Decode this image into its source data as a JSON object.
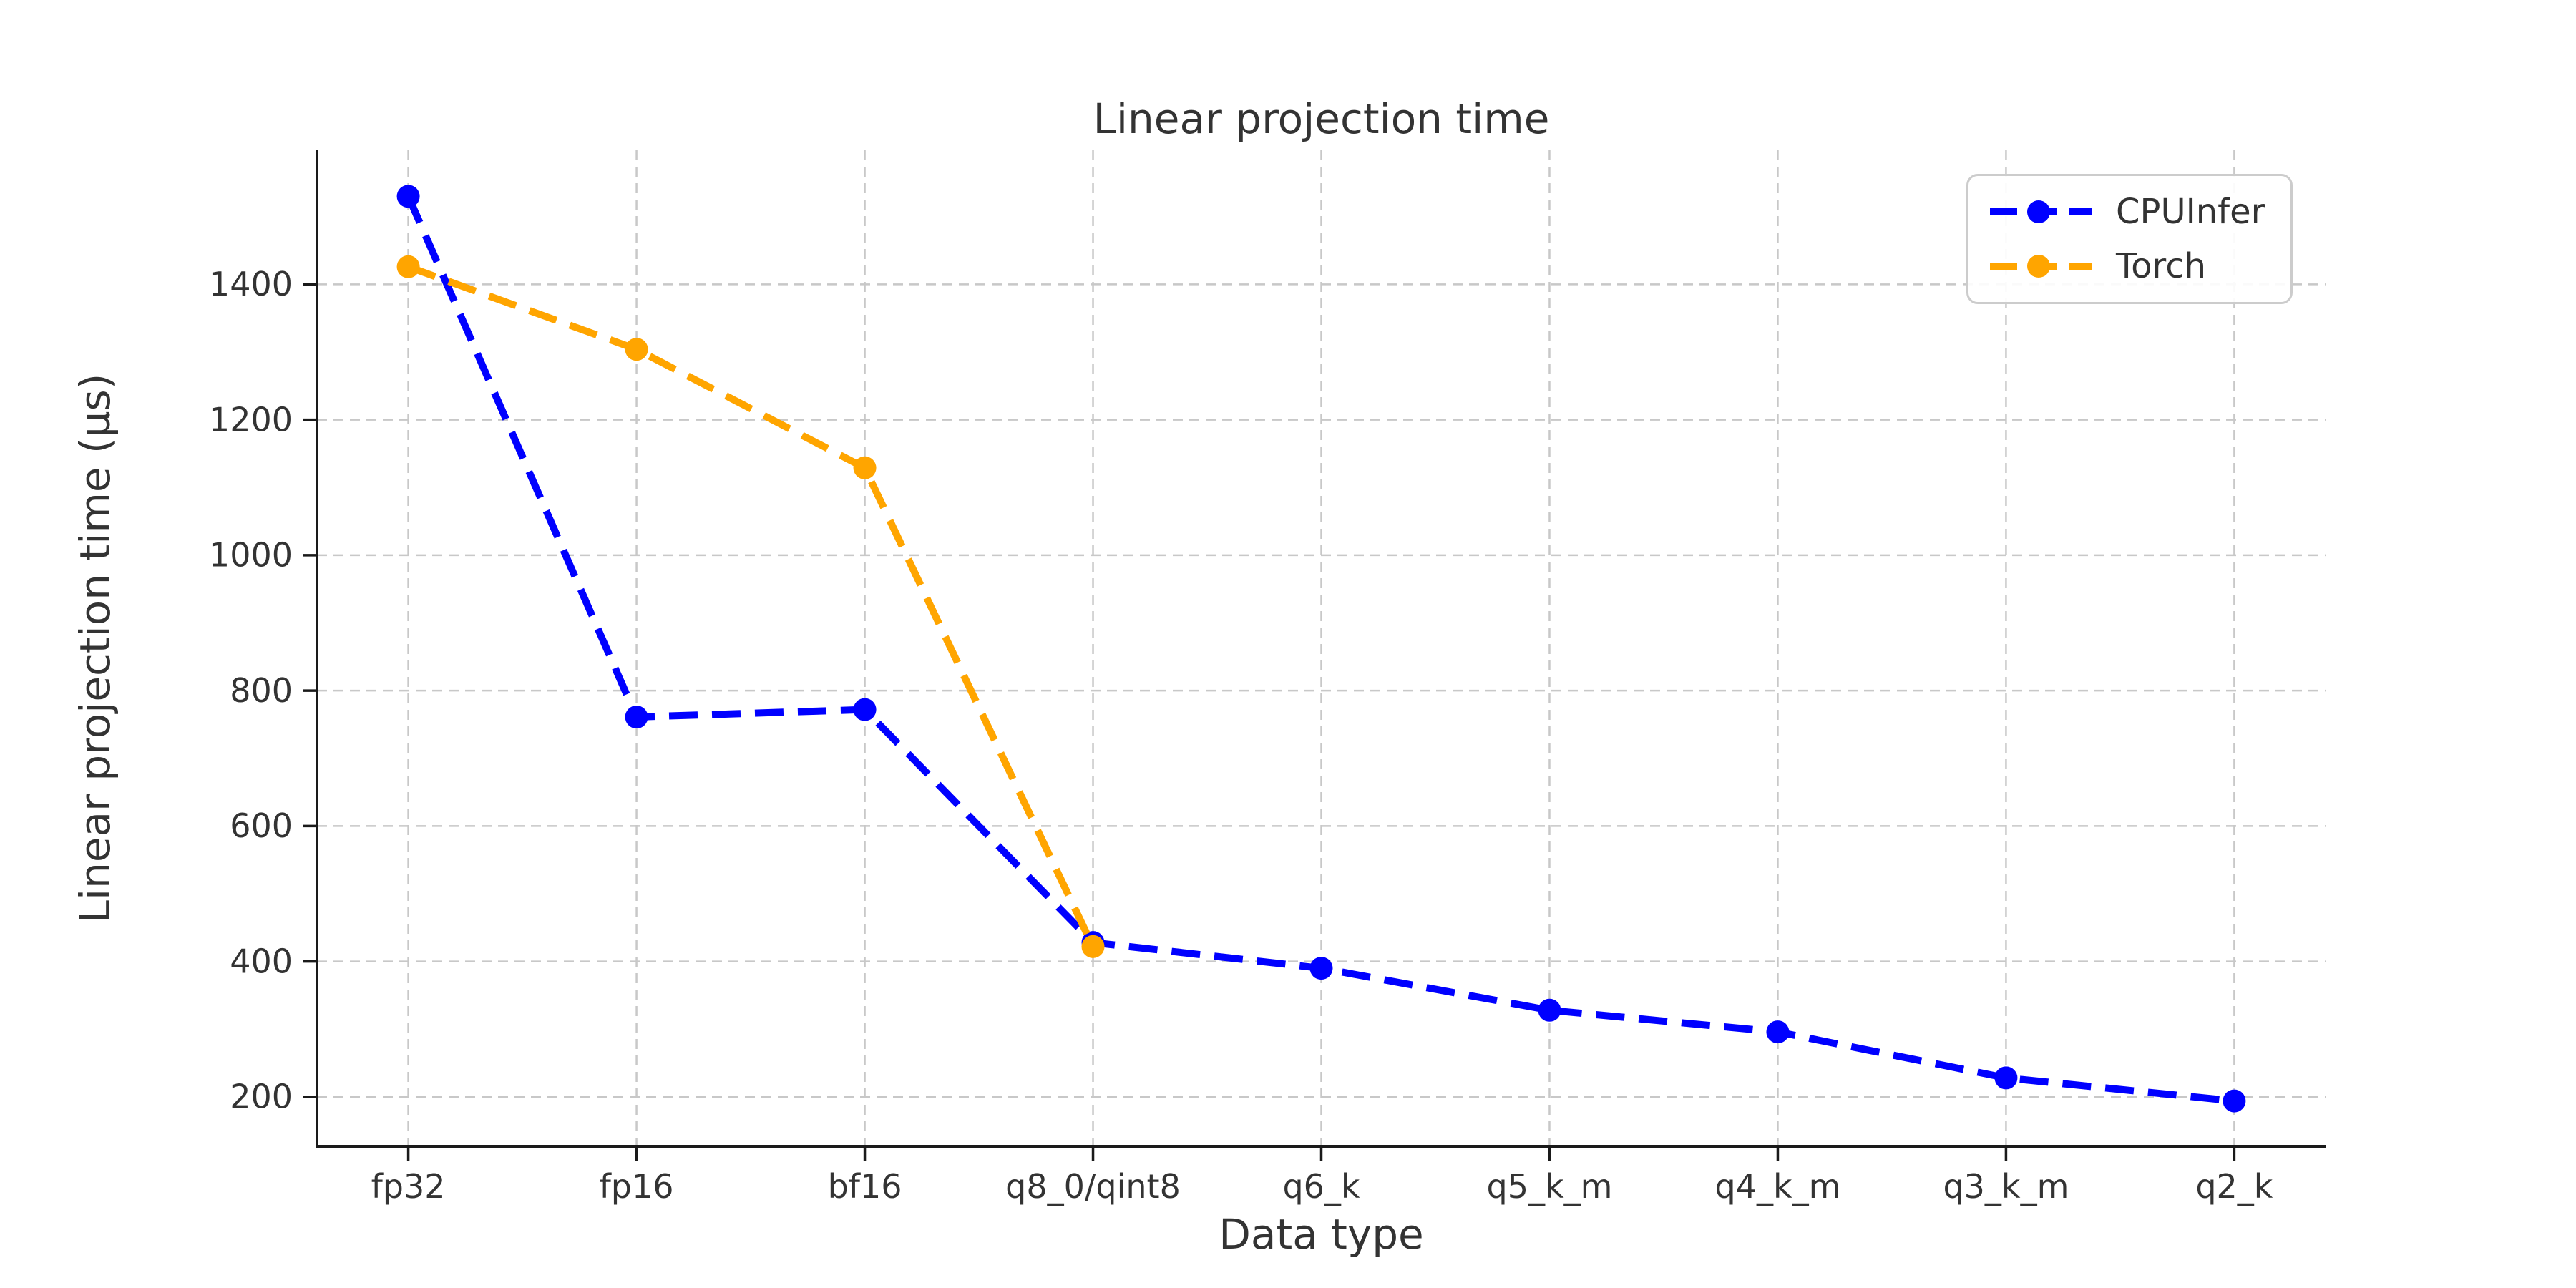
{
  "figure": {
    "background": "#ffffff",
    "text_color": "#333333",
    "axis_color": "#1a1a1a",
    "grid_color": "#c8c8c8"
  },
  "chart_data": {
    "type": "line",
    "title": "Linear projection time",
    "xlabel": "Data type",
    "ylabel": "Linear projection time (µs)",
    "categories": [
      "fp32",
      "fp16",
      "bf16",
      "q8_0/qint8",
      "q6_k",
      "q5_k_m",
      "q4_k_m",
      "q3_k_m",
      "q2_k"
    ],
    "series": [
      {
        "name": "CPUInfer",
        "color": "#0000ff",
        "linestyle": "dashed",
        "marker": "circle",
        "values": [
          1530,
          761,
          772,
          428,
          390,
          328,
          296,
          228,
          194
        ]
      },
      {
        "name": "Torch",
        "color": "#ffa500",
        "linestyle": "dashed",
        "marker": "circle",
        "values": [
          1426,
          1304,
          1129,
          422,
          null,
          null,
          null,
          null,
          null
        ]
      }
    ],
    "yticks": [
      200,
      400,
      600,
      800,
      1000,
      1200,
      1400
    ],
    "ylim": [
      127,
      1598
    ],
    "xlim": [
      -0.4,
      8.4
    ],
    "grid": true,
    "legend_position": "upper-right"
  },
  "legend": {
    "items": [
      {
        "label": "CPUInfer",
        "color": "#0000ff"
      },
      {
        "label": "Torch",
        "color": "#ffa500"
      }
    ]
  }
}
